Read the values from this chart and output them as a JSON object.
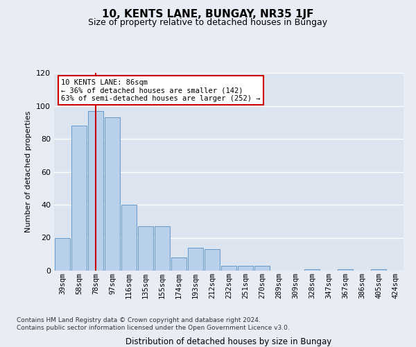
{
  "title": "10, KENTS LANE, BUNGAY, NR35 1JF",
  "subtitle": "Size of property relative to detached houses in Bungay",
  "xlabel": "Distribution of detached houses by size in Bungay",
  "ylabel": "Number of detached properties",
  "categories": [
    "39sqm",
    "58sqm",
    "78sqm",
    "97sqm",
    "116sqm",
    "135sqm",
    "155sqm",
    "174sqm",
    "193sqm",
    "212sqm",
    "232sqm",
    "251sqm",
    "270sqm",
    "289sqm",
    "309sqm",
    "328sqm",
    "347sqm",
    "367sqm",
    "386sqm",
    "405sqm",
    "424sqm"
  ],
  "values": [
    20,
    88,
    97,
    93,
    40,
    27,
    27,
    8,
    14,
    13,
    3,
    3,
    3,
    0,
    0,
    1,
    0,
    1,
    0,
    1,
    0
  ],
  "bar_color": "#b8d0ea",
  "bar_edge_color": "#6699cc",
  "plot_bg_color": "#dce4f0",
  "fig_bg_color": "#e8ecf5",
  "grid_color": "#ffffff",
  "marker_bin_index": 2,
  "marker_color": "#cc0000",
  "annotation_text": "10 KENTS LANE: 86sqm\n← 36% of detached houses are smaller (142)\n63% of semi-detached houses are larger (252) →",
  "annotation_box_facecolor": "#ffffff",
  "annotation_box_edgecolor": "#cc0000",
  "ylim": [
    0,
    120
  ],
  "yticks": [
    0,
    20,
    40,
    60,
    80,
    100,
    120
  ],
  "title_fontsize": 11,
  "subtitle_fontsize": 9,
  "ylabel_fontsize": 8,
  "xlabel_fontsize": 8.5,
  "tick_fontsize": 7.5,
  "annotation_fontsize": 7.5,
  "footer_text": "Contains HM Land Registry data © Crown copyright and database right 2024.\nContains public sector information licensed under the Open Government Licence v3.0.",
  "footer_fontsize": 6.5
}
